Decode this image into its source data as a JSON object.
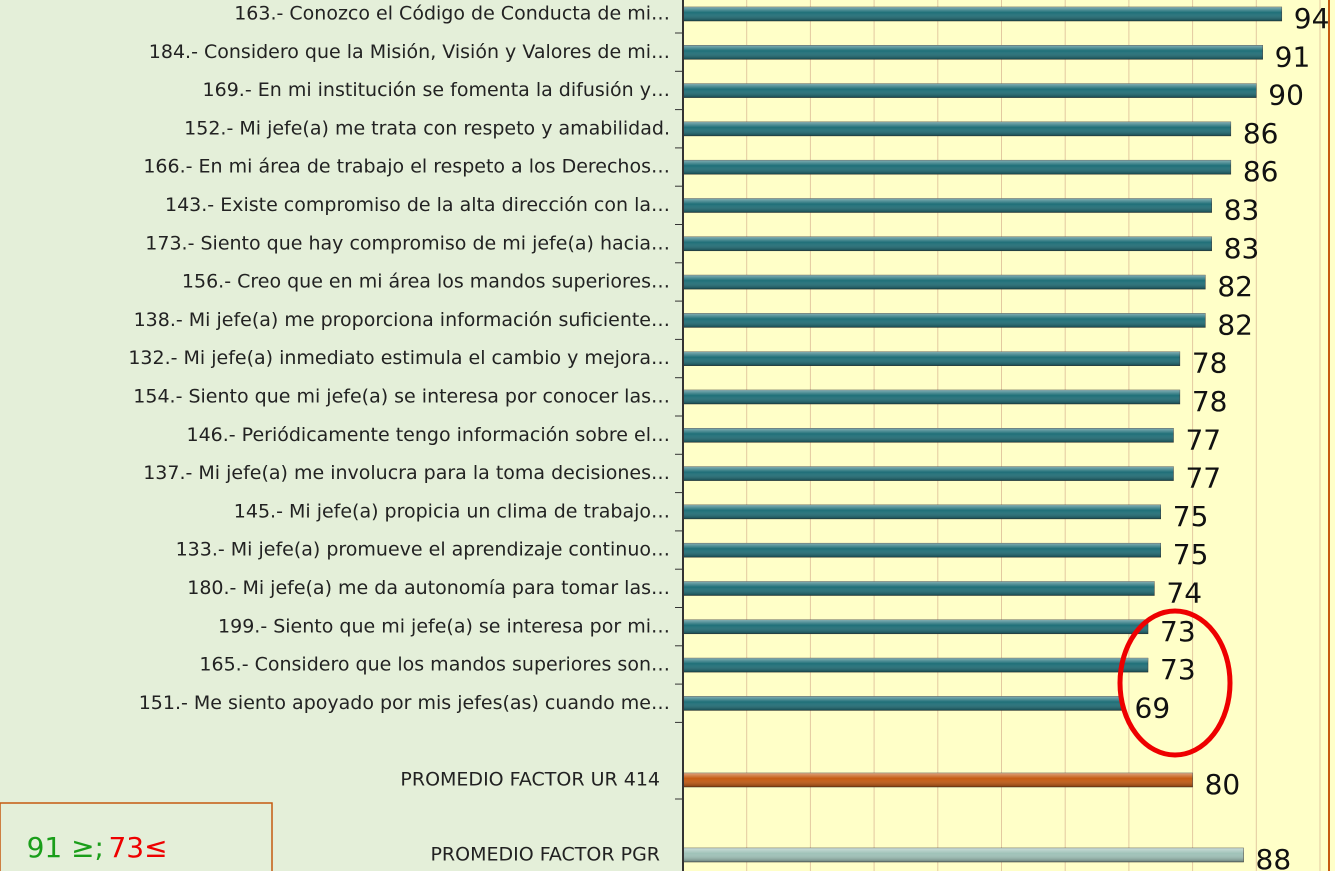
{
  "chart_data": {
    "type": "bar",
    "orientation": "horizontal",
    "categories": [
      "163.- Conozco el Código de Conducta de mi…",
      "184.- Considero que la Misión, Visión y Valores de mi…",
      "169.- En mi institución se fomenta la difusión y…",
      "152.- Mi jefe(a) me trata con respeto y amabilidad.",
      "166.- En mi área de trabajo el respeto a los Derechos…",
      "143.- Existe compromiso de la alta dirección con la…",
      "173.- Siento que hay compromiso de mi jefe(a) hacia…",
      "156.- Creo que en mi área los mandos superiores…",
      "138.- Mi jefe(a) me proporciona información suficiente…",
      "132.- Mi jefe(a) inmediato estimula el cambio y mejora…",
      "154.- Siento que mi jefe(a) se interesa por conocer las…",
      "146.- Periódicamente tengo información sobre el…",
      "137.- Mi jefe(a) me involucra para la toma decisiones…",
      "145.- Mi jefe(a) propicia un clima de trabajo…",
      "133.- Mi jefe(a) promueve el aprendizaje continuo…",
      "180.- Mi jefe(a) me da autonomía para tomar las…",
      "199.- Siento que mi jefe(a) se interesa por mi…",
      "165.- Considero que los mandos superiores son…",
      "151.- Me siento apoyado por mis jefes(as) cuando me…",
      "PROMEDIO FACTOR UR 414",
      "PROMEDIO FACTOR PGR"
    ],
    "values": [
      94,
      91,
      90,
      86,
      86,
      83,
      83,
      82,
      82,
      78,
      78,
      77,
      77,
      75,
      75,
      74,
      73,
      73,
      69,
      80,
      88
    ],
    "colors": [
      "#1f6f78",
      "#1f6f78",
      "#1f6f78",
      "#1f6f78",
      "#1f6f78",
      "#1f6f78",
      "#1f6f78",
      "#1f6f78",
      "#1f6f78",
      "#1f6f78",
      "#1f6f78",
      "#1f6f78",
      "#1f6f78",
      "#1f6f78",
      "#1f6f78",
      "#1f6f78",
      "#1f6f78",
      "#1f6f78",
      "#1f6f78",
      "#c55a11",
      "#9fc2b8"
    ],
    "xlim": [
      0,
      100
    ],
    "xticks": [
      0,
      10,
      20,
      30,
      40,
      50,
      60,
      70,
      80,
      90,
      100
    ],
    "grid": true,
    "thresholds": {
      "high": "91 ≥;",
      "low": "73≤"
    }
  }
}
